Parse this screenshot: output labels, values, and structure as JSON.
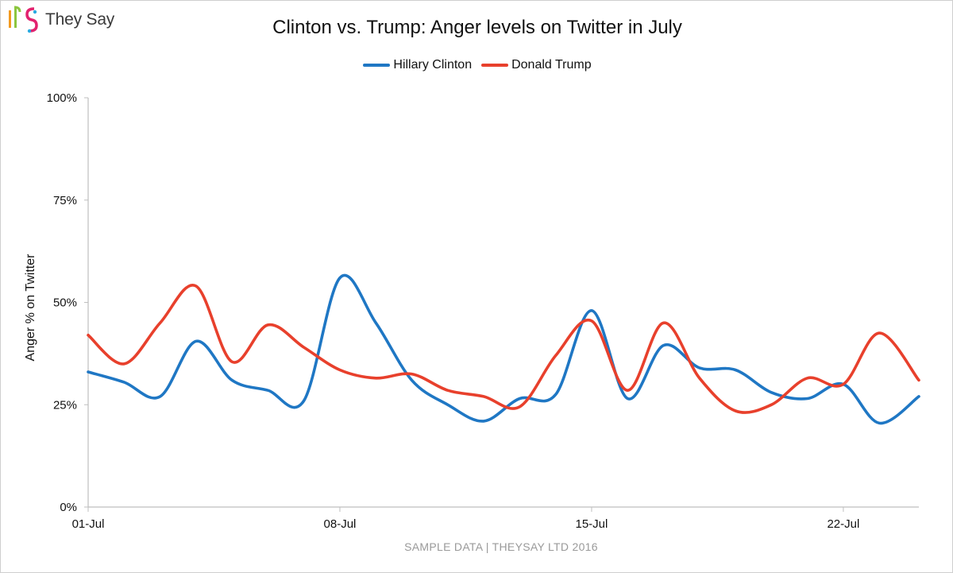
{
  "brand": {
    "name": "They Say"
  },
  "footer": "SAMPLE DATA | THEYSAY LTD 2016",
  "colors": {
    "clinton": "#1f77c4",
    "trump": "#e8402c",
    "axis": "#bfbfbf"
  },
  "chart_data": {
    "type": "line",
    "title": "Clinton vs. Trump: Anger levels on Twitter in July",
    "xlabel": "",
    "ylabel": "Anger % on Twitter",
    "x_tick_labels": [
      "01-Jul",
      "08-Jul",
      "15-Jul",
      "22-Jul"
    ],
    "x_tick_days": [
      1,
      8,
      15,
      22
    ],
    "y_tick_labels": [
      "0%",
      "25%",
      "50%",
      "75%",
      "100%"
    ],
    "y_ticks": [
      0,
      25,
      50,
      75,
      100
    ],
    "xlim": [
      1,
      24.1
    ],
    "ylim": [
      0,
      100
    ],
    "grid": false,
    "legend": "top-center",
    "x": [
      1,
      2,
      3,
      4,
      5,
      6,
      7,
      8,
      9,
      10,
      11,
      12,
      13,
      14,
      15,
      16,
      17,
      18,
      19,
      20,
      21,
      22,
      23,
      24.1
    ],
    "series": [
      {
        "name": "Hillary Clinton",
        "color": "#1f77c4",
        "values": [
          33,
          30.5,
          27,
          40.5,
          31,
          28.5,
          26,
          56,
          45,
          31,
          25,
          21,
          26.5,
          27.5,
          48,
          26.5,
          39.5,
          34,
          33.5,
          28,
          26.5,
          30,
          20.5,
          27
        ]
      },
      {
        "name": "Donald Trump",
        "color": "#e8402c",
        "values": [
          42,
          35,
          45,
          54,
          35.5,
          44.5,
          39,
          33.5,
          31.5,
          32.5,
          28.5,
          27,
          24.5,
          37,
          45.5,
          28.5,
          45,
          31.5,
          23.5,
          25,
          31.5,
          30,
          42.5,
          31
        ]
      }
    ]
  }
}
